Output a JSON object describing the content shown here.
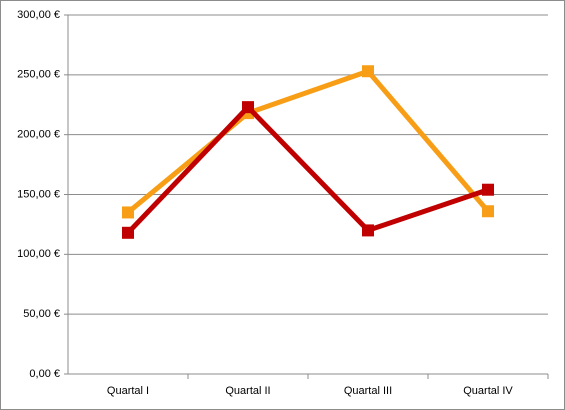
{
  "chart_data": {
    "type": "line",
    "categories": [
      "Quartal I",
      "Quartal II",
      "Quartal III",
      "Quartal IV"
    ],
    "series": [
      {
        "color": "#f79e16",
        "values": [
          135,
          218,
          253,
          136
        ]
      },
      {
        "color": "#c00000",
        "values": [
          118,
          223,
          120,
          154
        ]
      }
    ],
    "ylim": [
      0,
      300
    ],
    "yticks": [
      {
        "value": 0,
        "label": "0,00 €"
      },
      {
        "value": 50,
        "label": "50,00 €"
      },
      {
        "value": 100,
        "label": "100,00 €"
      },
      {
        "value": 150,
        "label": "150,00 €"
      },
      {
        "value": 200,
        "label": "200,00 €"
      },
      {
        "value": 250,
        "label": "250,00 €"
      },
      {
        "value": 300,
        "label": "300,00 €"
      }
    ],
    "grid": true
  }
}
